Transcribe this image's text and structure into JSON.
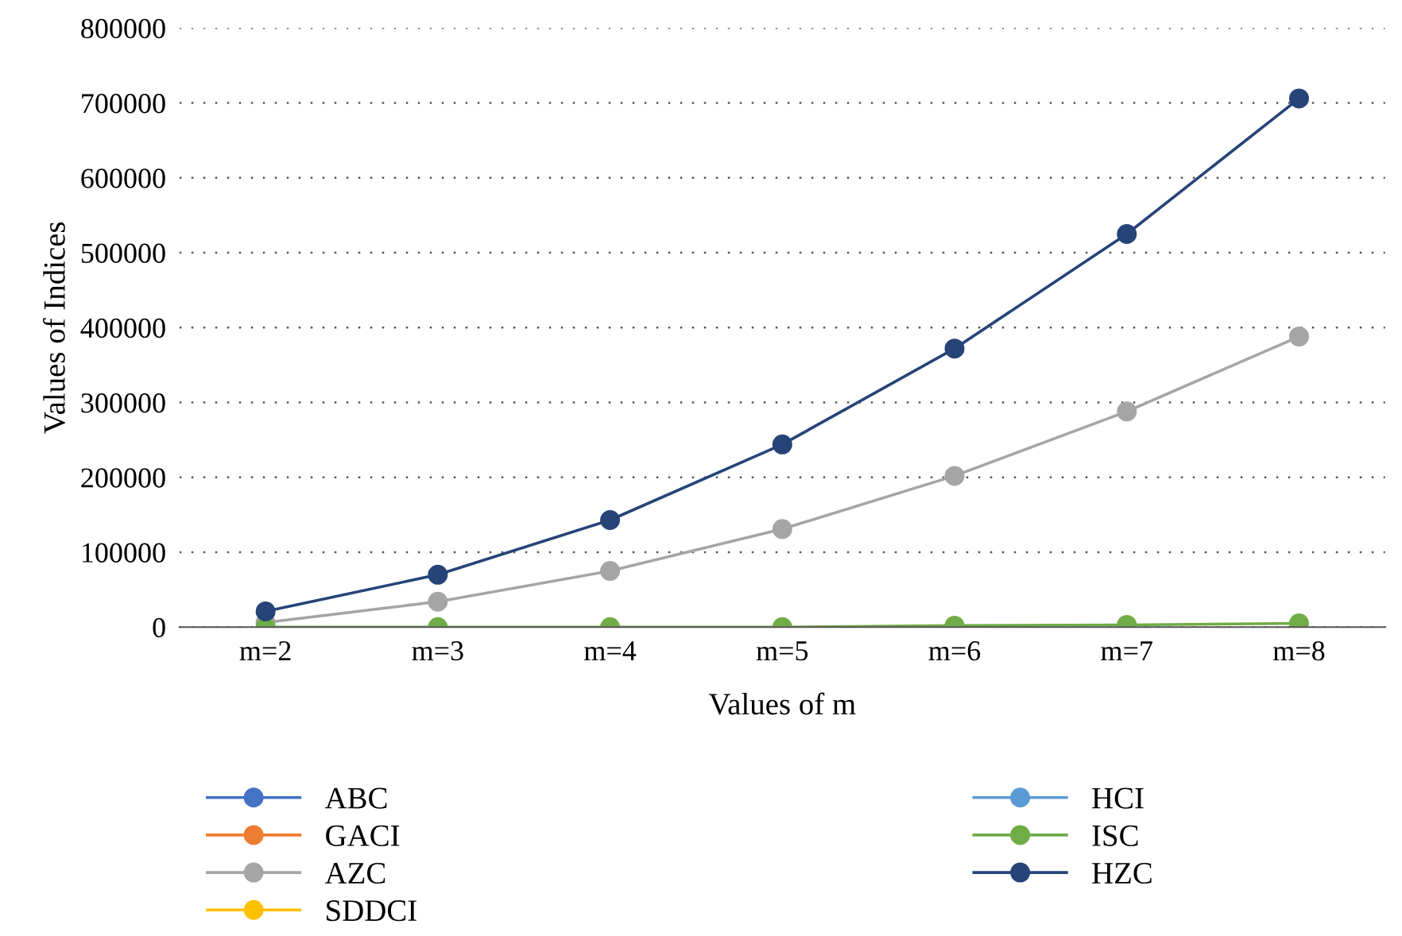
{
  "chart_data": {
    "type": "line",
    "xlabel": "Values of m",
    "ylabel": "Values of Indices",
    "categories": [
      "m=2",
      "m=3",
      "m=4",
      "m=5",
      "m=6",
      "m=7",
      "m=8"
    ],
    "series": [
      {
        "name": "ABC",
        "color": "#4472c4",
        "values": [
          null,
          null,
          null,
          null,
          null,
          null,
          null
        ]
      },
      {
        "name": "GACI",
        "color": "#ed7d31",
        "values": [
          null,
          null,
          null,
          null,
          null,
          null,
          null
        ]
      },
      {
        "name": "AZC",
        "color": "#a5a5a5",
        "values": [
          6000,
          34000,
          75000,
          131000,
          202000,
          288000,
          388000
        ]
      },
      {
        "name": "SDDCI",
        "color": "#ffc000",
        "values": [
          null,
          null,
          null,
          null,
          null,
          null,
          null
        ]
      },
      {
        "name": "HCI",
        "color": "#5b9bd5",
        "values": [
          null,
          null,
          null,
          null,
          null,
          null,
          null
        ]
      },
      {
        "name": "ISC",
        "color": "#70ad47",
        "values": [
          0,
          0,
          0,
          0,
          2000,
          3000,
          5000
        ]
      },
      {
        "name": "HZC",
        "color": "#264478",
        "values": [
          21000,
          70000,
          143000,
          244000,
          372000,
          525000,
          706000
        ]
      }
    ],
    "ylim": [
      0,
      800000
    ],
    "yticks": [
      0,
      100000,
      200000,
      300000,
      400000,
      500000,
      600000,
      700000,
      800000
    ],
    "grid": "y",
    "legend": "bottom",
    "marker": "circle",
    "line_style": "solid"
  }
}
